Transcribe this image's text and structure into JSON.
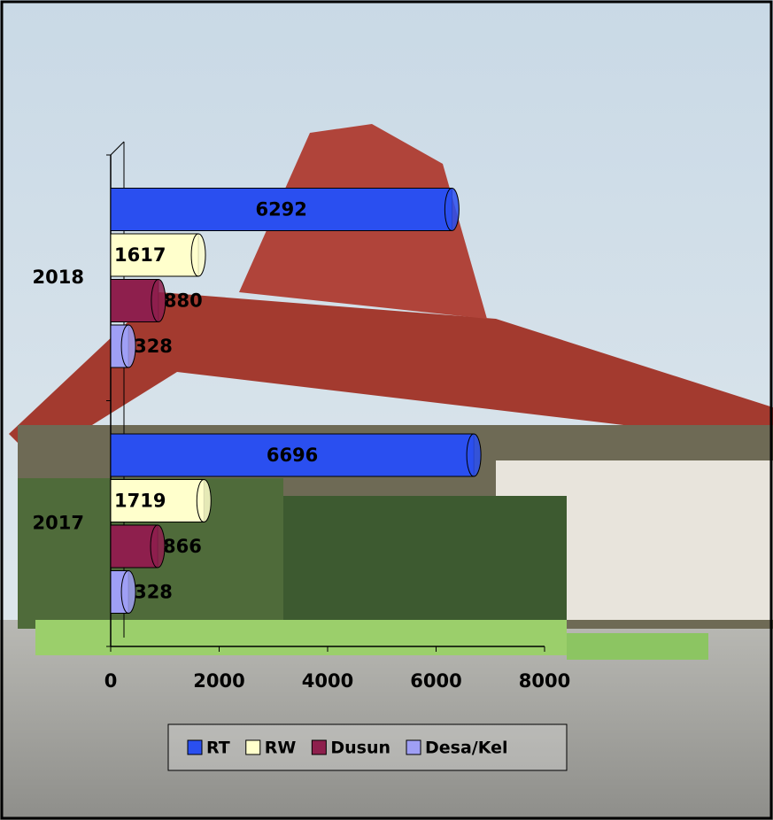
{
  "chart_data": {
    "type": "bar",
    "orientation": "horizontal",
    "categories": [
      "2018",
      "2017"
    ],
    "series": [
      {
        "name": "RT",
        "color": "#2a4ff0",
        "values": [
          6292,
          6696
        ]
      },
      {
        "name": "RW",
        "color": "#ffffcc",
        "values": [
          1617,
          1719
        ]
      },
      {
        "name": "Dusun",
        "color": "#8e1f4d",
        "values": [
          880,
          866
        ]
      },
      {
        "name": "Desa/Kel",
        "color": "#9f9ff5",
        "values": [
          328,
          328
        ]
      }
    ],
    "xlim": [
      0,
      8000
    ],
    "xticks": [
      0,
      2000,
      4000,
      6000,
      8000
    ],
    "legend": "bottom"
  }
}
